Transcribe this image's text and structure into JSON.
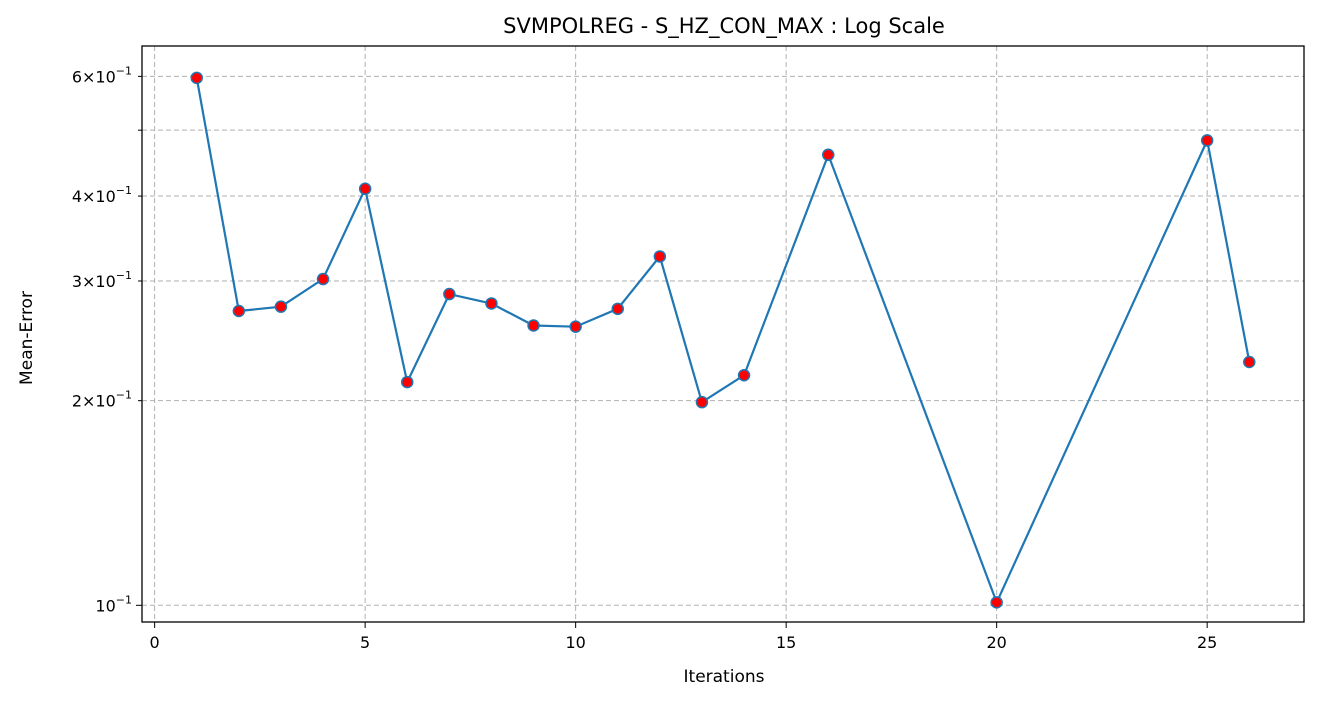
{
  "chart_data": {
    "type": "line",
    "title": "SVMPOLREG - S_HZ_CON_MAX : Log Scale",
    "xlabel": "Iterations",
    "ylabel": "Mean-Error",
    "yscale": "log",
    "grid": true,
    "xlim": [
      -0.3,
      27.3
    ],
    "ylim": [
      0.0945,
      0.665
    ],
    "x_ticks": [
      0,
      5,
      10,
      15,
      20,
      25
    ],
    "y_ticks": [
      {
        "value": 0.1,
        "mantissa": "",
        "exponent": "−1"
      },
      {
        "value": 0.2,
        "mantissa": "2",
        "exponent": "−1"
      },
      {
        "value": 0.3,
        "mantissa": "3",
        "exponent": "−1"
      },
      {
        "value": 0.4,
        "mantissa": "4",
        "exponent": "−1"
      },
      {
        "value": 0.5,
        "mantissa": "",
        "exponent": ""
      },
      {
        "value": 0.6,
        "mantissa": "6",
        "exponent": "−1"
      }
    ],
    "series": [
      {
        "line_color": "#1f77b4",
        "marker_color": "#ff0000",
        "x": [
          1,
          2,
          3,
          4,
          5,
          6,
          7,
          8,
          9,
          10,
          11,
          12,
          13,
          14,
          16,
          20,
          25,
          26
        ],
        "y": [
          0.597,
          0.271,
          0.275,
          0.302,
          0.41,
          0.213,
          0.287,
          0.278,
          0.258,
          0.257,
          0.273,
          0.326,
          0.199,
          0.218,
          0.46,
          0.101,
          0.483,
          0.228
        ]
      }
    ]
  }
}
